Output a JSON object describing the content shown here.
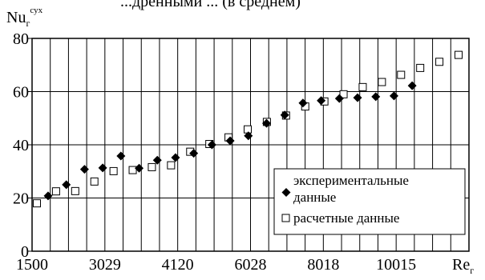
{
  "header": {
    "caption": "...дренными ... (в среднем)"
  },
  "chart_data": {
    "type": "scatter",
    "title": "",
    "ylabel": "Nu",
    "ylabel_sub": "г",
    "ylabel_sup": "сух",
    "xlabel": "Re",
    "xlabel_sub": "г",
    "ylim": [
      0,
      80
    ],
    "y_ticks": [
      0,
      20,
      40,
      60,
      80
    ],
    "x_tick_labels": [
      "1500",
      "3029",
      "4120",
      "6028",
      "8018",
      "10015"
    ],
    "vertical_gridlines": 24,
    "grid": true,
    "legend_position": "lower-right",
    "series": [
      {
        "name": "экспериментальные данные",
        "marker": "diamond",
        "color": "#000000",
        "values": [
          20.8,
          25.0,
          30.8,
          31.3,
          35.8,
          31.2,
          34.2,
          35.2,
          36.8,
          40.0,
          41.5,
          43.4,
          48.1,
          51.2,
          55.7,
          56.6,
          57.4,
          57.7,
          58.1,
          58.4,
          62.2
        ]
      },
      {
        "name": "расчетные данные",
        "marker": "square-open",
        "color": "#000000",
        "values": [
          18.0,
          22.5,
          22.6,
          26.2,
          30.1,
          30.5,
          31.6,
          32.3,
          37.4,
          40.3,
          42.8,
          45.8,
          48.6,
          51.0,
          54.4,
          56.3,
          59.0,
          61.7,
          63.6,
          66.3,
          68.9,
          71.2,
          73.8
        ]
      }
    ]
  }
}
